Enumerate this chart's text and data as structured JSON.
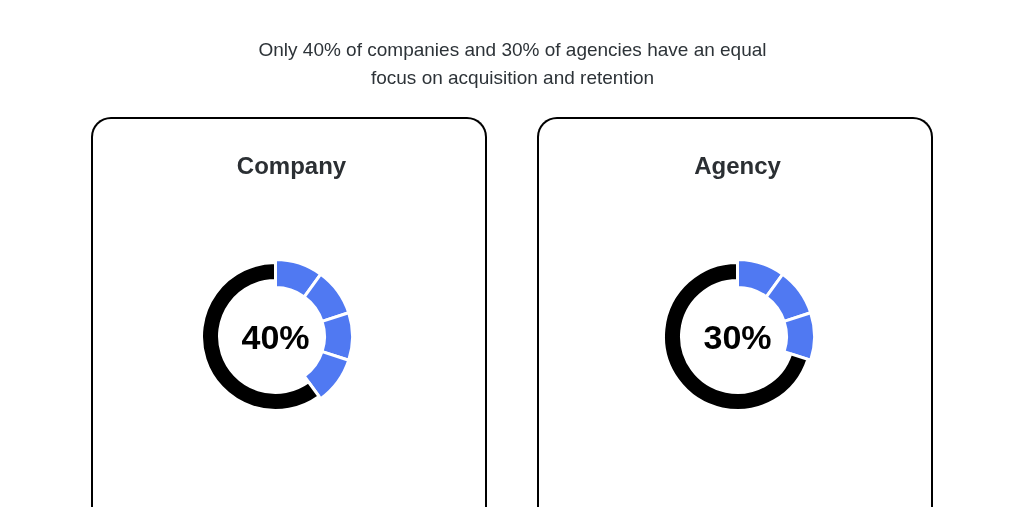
{
  "chart_data": [
    {
      "type": "other",
      "title": "Only 40% of companies and 30% of agencies have an equal focus on acquisition and retention"
    },
    {
      "type": "donut",
      "title": "Company",
      "categories": [
        null,
        null,
        null,
        null,
        null
      ],
      "values": [
        10,
        10,
        10,
        10,
        60
      ],
      "colors": [
        "#5079f2",
        "#5079f2",
        "#5079f2",
        "#5079f2",
        "#000000"
      ],
      "annotations": [
        "40%"
      ]
    },
    {
      "type": "donut",
      "title": "Agency",
      "categories": [
        null,
        null,
        null,
        null
      ],
      "values": [
        10,
        10,
        10,
        70
      ],
      "colors": [
        "#5079f2",
        "#5079f2",
        "#5079f2",
        "#000000"
      ],
      "annotations": [
        "30%"
      ]
    }
  ]
}
